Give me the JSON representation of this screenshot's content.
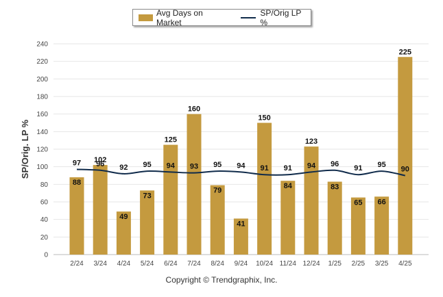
{
  "chart_data": {
    "type": "bar",
    "categories": [
      "2/24",
      "3/24",
      "4/24",
      "5/24",
      "6/24",
      "7/24",
      "8/24",
      "9/24",
      "10/24",
      "11/24",
      "12/24",
      "1/25",
      "2/25",
      "3/25",
      "4/25"
    ],
    "series": [
      {
        "name": "Avg Days on Market",
        "type": "bar",
        "color": "#c49a3f",
        "values": [
          88,
          102,
          49,
          73,
          125,
          160,
          79,
          41,
          150,
          84,
          123,
          83,
          65,
          66,
          225
        ]
      },
      {
        "name": "SP/Orig LP %",
        "type": "line",
        "color": "#0f2a4a",
        "values": [
          97,
          96,
          92,
          95,
          94,
          93,
          95,
          94,
          91,
          91,
          94,
          96,
          91,
          95,
          90
        ]
      }
    ],
    "title": "",
    "xlabel": "",
    "ylabel": "SP/Orig. LP %",
    "ylim": [
      0,
      240
    ],
    "yticks": [
      0,
      20,
      40,
      60,
      80,
      100,
      120,
      140,
      160,
      180,
      200,
      220,
      240
    ],
    "grid": true,
    "legend": "top-center"
  },
  "footer": {
    "copyright": "Copyright © Trendgraphix, Inc."
  }
}
